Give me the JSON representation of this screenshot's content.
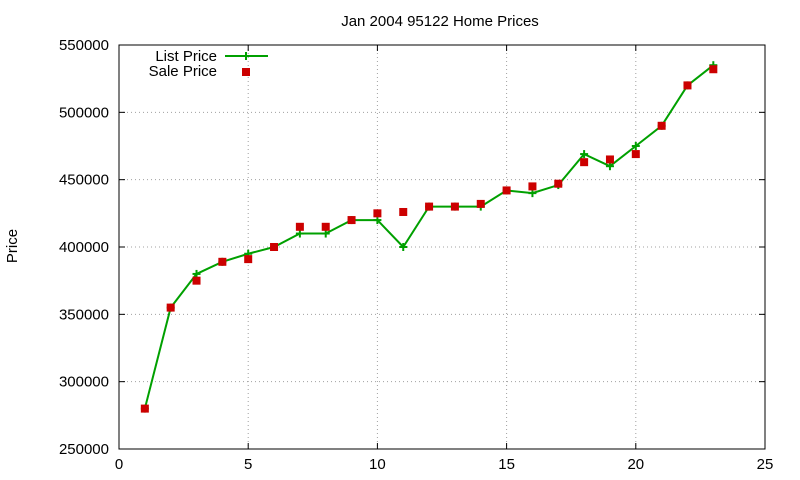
{
  "chart_data": {
    "type": "line",
    "title": "Jan 2004 95122 Home Prices",
    "xlabel": "",
    "ylabel": "Price",
    "xlim": [
      0,
      25
    ],
    "ylim": [
      250000,
      550000
    ],
    "xticks": [
      0,
      5,
      10,
      15,
      20,
      25
    ],
    "yticks": [
      250000,
      300000,
      350000,
      400000,
      450000,
      500000,
      550000
    ],
    "xtick_labels": [
      "0",
      "5",
      "10",
      "15",
      "20",
      "25"
    ],
    "ytick_labels": [
      "250000",
      "300000",
      "350000",
      "400000",
      "450000",
      "500000",
      "550000"
    ],
    "grid": true,
    "legend_position": "top-left",
    "x": [
      1,
      2,
      3,
      4,
      5,
      6,
      7,
      8,
      9,
      10,
      11,
      12,
      13,
      14,
      15,
      16,
      17,
      18,
      19,
      20,
      21,
      22,
      23
    ],
    "series": [
      {
        "name": "List Price",
        "style": "line+cross",
        "color": "#00a000",
        "values": [
          280000,
          355000,
          380000,
          389000,
          395000,
          400000,
          410000,
          410000,
          420000,
          420000,
          400000,
          430000,
          430000,
          430000,
          442000,
          440000,
          446000,
          469000,
          460000,
          475000,
          490000,
          520000,
          535000
        ]
      },
      {
        "name": "Sale Price",
        "style": "square-points",
        "color": "#cc0000",
        "values": [
          280000,
          355000,
          375000,
          389000,
          391000,
          400000,
          415000,
          415000,
          420000,
          425000,
          426000,
          430000,
          430000,
          432000,
          442000,
          445000,
          447000,
          463000,
          465000,
          469000,
          490000,
          520000,
          532000
        ]
      }
    ]
  }
}
